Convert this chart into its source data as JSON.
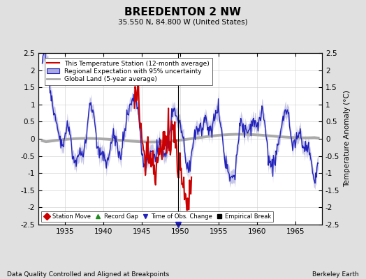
{
  "title": "BREEDENTON 2 NW",
  "subtitle": "35.550 N, 84.800 W (United States)",
  "xlabel_bottom": "Data Quality Controlled and Aligned at Breakpoints",
  "xlabel_right": "Berkeley Earth",
  "ylabel": "Temperature Anomaly (°C)",
  "xlim": [
    1931.5,
    1968.5
  ],
  "ylim": [
    -2.5,
    2.5
  ],
  "xticks": [
    1935,
    1940,
    1945,
    1950,
    1955,
    1960,
    1965
  ],
  "yticks": [
    -2.5,
    -2,
    -1.5,
    -1,
    -0.5,
    0,
    0.5,
    1,
    1.5,
    2,
    2.5
  ],
  "background_color": "#e0e0e0",
  "plot_bg_color": "#ffffff",
  "obs_change_year": 1949.75,
  "legend_entries": [
    "This Temperature Station (12-month average)",
    "Regional Expectation with 95% uncertainty",
    "Global Land (5-year average)"
  ],
  "station_color": "#cc0000",
  "regional_color": "#2222bb",
  "regional_fill_color": "#aaaadd",
  "global_color": "#aaaaaa",
  "marker_legend": [
    {
      "label": "Station Move",
      "color": "#cc0000",
      "marker": "D"
    },
    {
      "label": "Record Gap",
      "color": "#228B22",
      "marker": "^"
    },
    {
      "label": "Time of Obs. Change",
      "color": "#2222bb",
      "marker": "v"
    },
    {
      "label": "Empirical Break",
      "color": "#000000",
      "marker": "s"
    }
  ]
}
